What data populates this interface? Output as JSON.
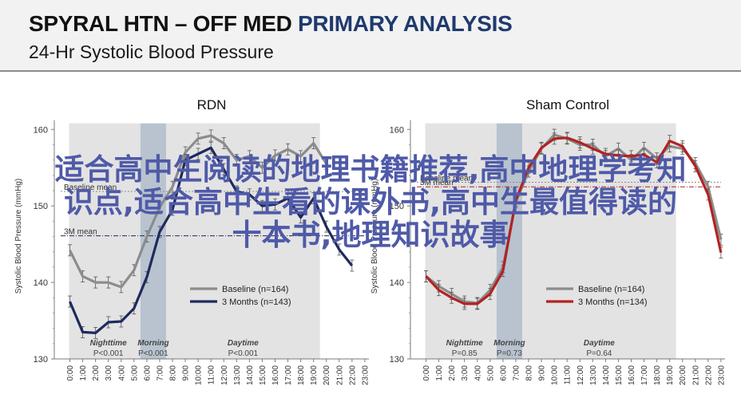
{
  "header": {
    "title_part1": "SPYRAL HTN – OFF MED",
    "title_part2": "PRIMARY ANALYSIS",
    "subtitle": "24-Hr Systolic Blood Pressure"
  },
  "colors": {
    "baseline": "#8c8c8c",
    "rdn_3months": "#1f2a5c",
    "sham_3months": "#b22222",
    "period_band": "#e3e3e3",
    "morning_band": "#b8c3cf",
    "title_blue": "#1f3a6e"
  },
  "watermark": {
    "line1": "适合高中生阅读的地理书籍推荐,高中地理学考知",
    "line2": "识点,适合高中生看的课外书,高中生最值得读的",
    "line3": "十本书,地理知识故事"
  },
  "shared": {
    "ylabel": "Systolic  Blood Pressure (mmHg)",
    "x_ticks": [
      "0:00",
      "1:00",
      "2:00",
      "3:00",
      "4:00",
      "5:00",
      "6:00",
      "7:00",
      "8:00",
      "9:00",
      "10:00",
      "11:00",
      "12:00",
      "13:00",
      "14:00",
      "15:00",
      "16:00",
      "17:00",
      "18:00",
      "19:00",
      "20:00",
      "21:00",
      "22:00",
      "23:00"
    ],
    "y_ticks": [
      "130",
      "140",
      "150",
      "160"
    ],
    "periods": [
      "Nighttime",
      "Morning",
      "Daytime"
    ]
  },
  "chart_data": [
    {
      "type": "line",
      "title": "RDN",
      "ylim": [
        130,
        161
      ],
      "x": [
        "0:00",
        "1:00",
        "2:00",
        "3:00",
        "4:00",
        "5:00",
        "6:00",
        "7:00",
        "8:00",
        "9:00",
        "10:00",
        "11:00",
        "12:00",
        "13:00",
        "14:00",
        "15:00",
        "16:00",
        "17:00",
        "18:00",
        "19:00",
        "20:00",
        "21:00",
        "22:00",
        "23:00"
      ],
      "series": [
        {
          "name": "Baseline (n=164)",
          "color": "#8c8c8c",
          "values": [
            144.2,
            140.8,
            140,
            140,
            139.4,
            141.6,
            146,
            149.8,
            152.5,
            157,
            158.8,
            159.2,
            158.2,
            156,
            156.5,
            155,
            156.6,
            157.4,
            156.5,
            158.2,
            155.5,
            null,
            null,
            null
          ]
        },
        {
          "name": "3 Months (n=143)",
          "color": "#1f2a5c",
          "values": [
            137.5,
            133.5,
            133.4,
            134.8,
            134.9,
            136.6,
            140.7,
            146.6,
            149.5,
            156,
            156.8,
            157.6,
            154.8,
            151.9,
            151.5,
            150,
            150.2,
            151,
            148.5,
            151,
            147.3,
            144.3,
            142.2,
            null
          ]
        }
      ],
      "reference_lines": [
        {
          "label": "Baseline mean",
          "value": 151.9,
          "color": "#8c8c8c"
        },
        {
          "label": "3M mean",
          "value": 146.1,
          "color": "#1f2a5c"
        }
      ],
      "period_labels": [
        {
          "name": "Nighttime",
          "p": "P<0.001"
        },
        {
          "name": "Morning",
          "p": "P<0.001"
        },
        {
          "name": "Daytime",
          "p": "P<0.001"
        }
      ]
    },
    {
      "type": "line",
      "title": "Sham Control",
      "ylim": [
        130,
        161
      ],
      "x": [
        "0:00",
        "1:00",
        "2:00",
        "3:00",
        "4:00",
        "5:00",
        "6:00",
        "7:00",
        "8:00",
        "9:00",
        "10:00",
        "11:00",
        "12:00",
        "13:00",
        "14:00",
        "15:00",
        "16:00",
        "17:00",
        "18:00",
        "19:00",
        "20:00",
        "21:00",
        "22:00",
        "23:00"
      ],
      "series": [
        {
          "name": "Baseline (n=164)",
          "color": "#8c8c8c",
          "values": [
            140.8,
            139.5,
            138.5,
            137.5,
            137.3,
            139,
            142,
            150.5,
            154.5,
            157.5,
            159.3,
            158.8,
            158,
            158,
            156.5,
            157.5,
            156,
            157.6,
            156.2,
            157.8,
            157.5,
            155.6,
            152.5,
            145.6
          ]
        },
        {
          "name": "3 Months (n=134)",
          "color": "#b22222",
          "values": [
            140.8,
            139,
            138,
            137.2,
            137.2,
            138.5,
            141.5,
            150.7,
            155,
            157.6,
            158.8,
            158.9,
            158.3,
            157.5,
            156.8,
            156.6,
            156.5,
            156.7,
            155.7,
            158.5,
            157.8,
            155.2,
            151.5,
            143.9
          ]
        }
      ],
      "reference_lines": [
        {
          "label": "Baseline mean",
          "value": 153.1,
          "color": "#8c8c8c"
        },
        {
          "label": "3M mean",
          "value": 152.5,
          "color": "#b22222"
        }
      ],
      "period_labels": [
        {
          "name": "Nighttime",
          "p": "P=0.85"
        },
        {
          "name": "Morning",
          "p": "P=0.73"
        },
        {
          "name": "Daytime",
          "p": "P=0.64"
        }
      ]
    }
  ]
}
